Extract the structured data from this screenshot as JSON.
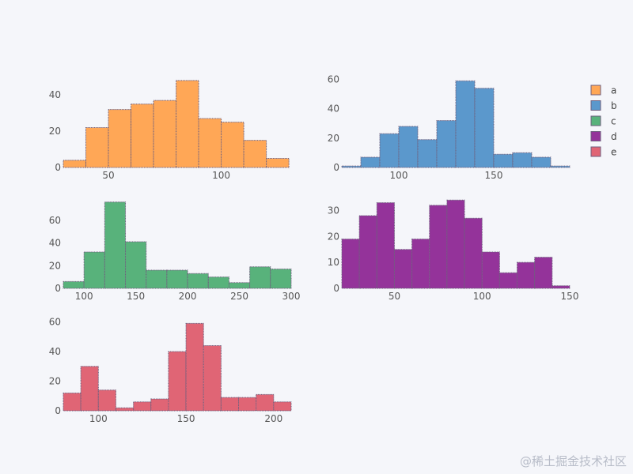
{
  "watermark": "@稀土掘金技术社区",
  "chart_data": [
    {
      "type": "histogram",
      "name": "a",
      "color": "#FFA756",
      "xlim": [
        30,
        131
      ],
      "ylim": [
        0,
        51
      ],
      "bin_start": 30,
      "bin_width": 10,
      "values": [
        4,
        22,
        32,
        35,
        37,
        48,
        27,
        25,
        15,
        5
      ],
      "xticks": [
        50,
        100
      ],
      "yticks": [
        0,
        20,
        40
      ]
    },
    {
      "type": "histogram",
      "name": "b",
      "color": "#5B98CC",
      "xlim": [
        70,
        190
      ],
      "ylim": [
        0,
        63
      ],
      "bin_start": 70,
      "bin_width": 10,
      "values": [
        1,
        7,
        23,
        28,
        19,
        32,
        59,
        54,
        9,
        10,
        7,
        1
      ],
      "xticks": [
        100,
        150
      ],
      "yticks": [
        0,
        20,
        40,
        60
      ]
    },
    {
      "type": "histogram",
      "name": "c",
      "color": "#58B27B",
      "xlim": [
        80,
        300
      ],
      "ylim": [
        0,
        80
      ],
      "bin_start": 80,
      "bin_width": 20,
      "values": [
        6,
        32,
        76,
        41,
        16,
        16,
        13,
        10,
        5,
        19,
        17
      ],
      "xticks": [
        100,
        150,
        200,
        250,
        300
      ],
      "yticks": [
        0,
        20,
        40,
        60
      ]
    },
    {
      "type": "histogram",
      "name": "d",
      "color": "#94339A",
      "xlim": [
        20,
        150
      ],
      "ylim": [
        0,
        35
      ],
      "bin_start": 20,
      "bin_width": 10,
      "values": [
        19,
        28,
        33,
        15,
        19,
        32,
        34,
        27,
        14,
        6,
        10,
        12,
        1
      ],
      "xticks": [
        50,
        100,
        150
      ],
      "yticks": [
        0,
        10,
        20,
        30
      ]
    },
    {
      "type": "histogram",
      "name": "e",
      "color": "#E06575",
      "xlim": [
        80,
        210
      ],
      "ylim": [
        0,
        64
      ],
      "bin_start": 80,
      "bin_width": 10,
      "values": [
        12,
        30,
        14,
        2,
        6,
        8,
        40,
        59,
        44,
        9,
        9,
        11,
        6
      ],
      "xticks": [
        100,
        150,
        200
      ],
      "yticks": [
        0,
        20,
        40,
        60
      ]
    }
  ],
  "legend": [
    {
      "label": "a",
      "color": "#FFA756"
    },
    {
      "label": "b",
      "color": "#5B98CC"
    },
    {
      "label": "c",
      "color": "#58B27B"
    },
    {
      "label": "d",
      "color": "#94339A"
    },
    {
      "label": "e",
      "color": "#E06575"
    }
  ]
}
